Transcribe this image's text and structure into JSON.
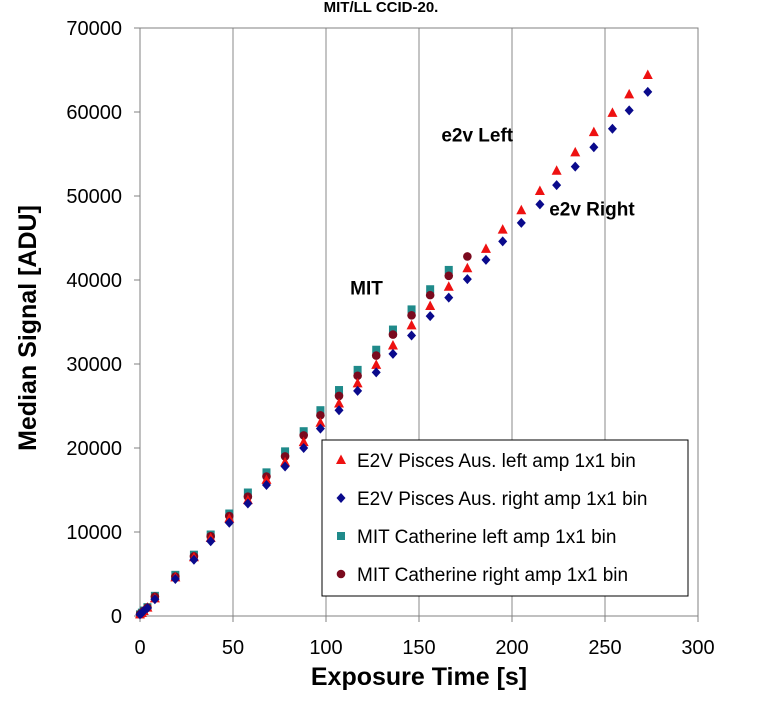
{
  "chart_data": {
    "type": "scatter",
    "title": "MIT/LL CCID-20.",
    "xlabel": "Exposure Time [s]",
    "ylabel": "Median Signal [ADU]",
    "xlim": [
      0,
      300
    ],
    "ylim": [
      0,
      70000
    ],
    "x_ticks": [
      0,
      50,
      100,
      150,
      200,
      250,
      300
    ],
    "y_ticks": [
      0,
      10000,
      20000,
      30000,
      40000,
      50000,
      60000,
      70000
    ],
    "grid": "vertical",
    "legend_position": "bottom-right",
    "annotations": [
      {
        "text": "e2v Left",
        "x": 162,
        "y": 56500
      },
      {
        "text": "e2v Right",
        "x": 220,
        "y": 47700
      },
      {
        "text": "MIT",
        "x": 113,
        "y": 38300
      }
    ],
    "series": [
      {
        "name": "E2V Pisces Aus. left amp 1x1 bin",
        "marker": "triangle",
        "color": "#ee1111",
        "x": [
          0,
          1,
          2,
          4,
          8,
          19,
          29,
          38,
          48,
          58,
          68,
          78,
          88,
          97,
          107,
          117,
          127,
          136,
          146,
          156,
          166,
          176,
          186,
          195,
          205,
          215,
          224,
          234,
          244,
          254,
          263,
          273
        ],
        "y": [
          200,
          350,
          600,
          1000,
          2100,
          4600,
          7000,
          9300,
          11600,
          13800,
          16200,
          18300,
          20700,
          23000,
          25300,
          27700,
          29900,
          32200,
          34600,
          36900,
          39200,
          41400,
          43700,
          46000,
          48300,
          50600,
          53000,
          55200,
          57600,
          59900,
          62100,
          64400
        ]
      },
      {
        "name": "E2V Pisces Aus. right amp 1x1 bin",
        "marker": "diamond",
        "color": "#0a0a8c",
        "x": [
          0,
          1,
          2,
          4,
          8,
          19,
          29,
          38,
          48,
          58,
          68,
          78,
          88,
          97,
          107,
          117,
          127,
          136,
          146,
          156,
          166,
          176,
          186,
          195,
          205,
          215,
          224,
          234,
          244,
          254,
          263,
          273
        ],
        "y": [
          200,
          350,
          600,
          950,
          2000,
          4400,
          6700,
          8900,
          11100,
          13400,
          15600,
          17800,
          20000,
          22300,
          24500,
          26800,
          29000,
          31200,
          33400,
          35700,
          37900,
          40100,
          42400,
          44600,
          46800,
          49000,
          51300,
          53500,
          55800,
          58000,
          60200,
          62400
        ]
      },
      {
        "name": "MIT Catherine  left amp 1x1 bin",
        "marker": "square",
        "color": "#1f8a8a",
        "x": [
          0,
          1,
          2,
          4,
          8,
          19,
          29,
          38,
          48,
          58,
          68,
          78,
          88,
          97,
          107,
          117,
          127,
          136,
          146,
          156,
          166
        ],
        "y": [
          200,
          400,
          650,
          1050,
          2400,
          4900,
          7300,
          9700,
          12200,
          14700,
          17100,
          19600,
          22000,
          24500,
          26900,
          29300,
          31700,
          34100,
          36500,
          38900,
          41200
        ]
      },
      {
        "name": "MIT Catherine  right amp 1x1 bin",
        "marker": "circle",
        "color": "#7a0a1e",
        "x": [
          0,
          1,
          2,
          4,
          8,
          19,
          29,
          38,
          48,
          58,
          68,
          78,
          88,
          97,
          107,
          117,
          127,
          136,
          146,
          156,
          166,
          176
        ],
        "y": [
          200,
          380,
          600,
          1000,
          2300,
          4700,
          7100,
          9500,
          11900,
          14200,
          16600,
          19000,
          21500,
          23900,
          26200,
          28600,
          31000,
          33500,
          35800,
          38200,
          40500,
          42800
        ]
      }
    ]
  }
}
